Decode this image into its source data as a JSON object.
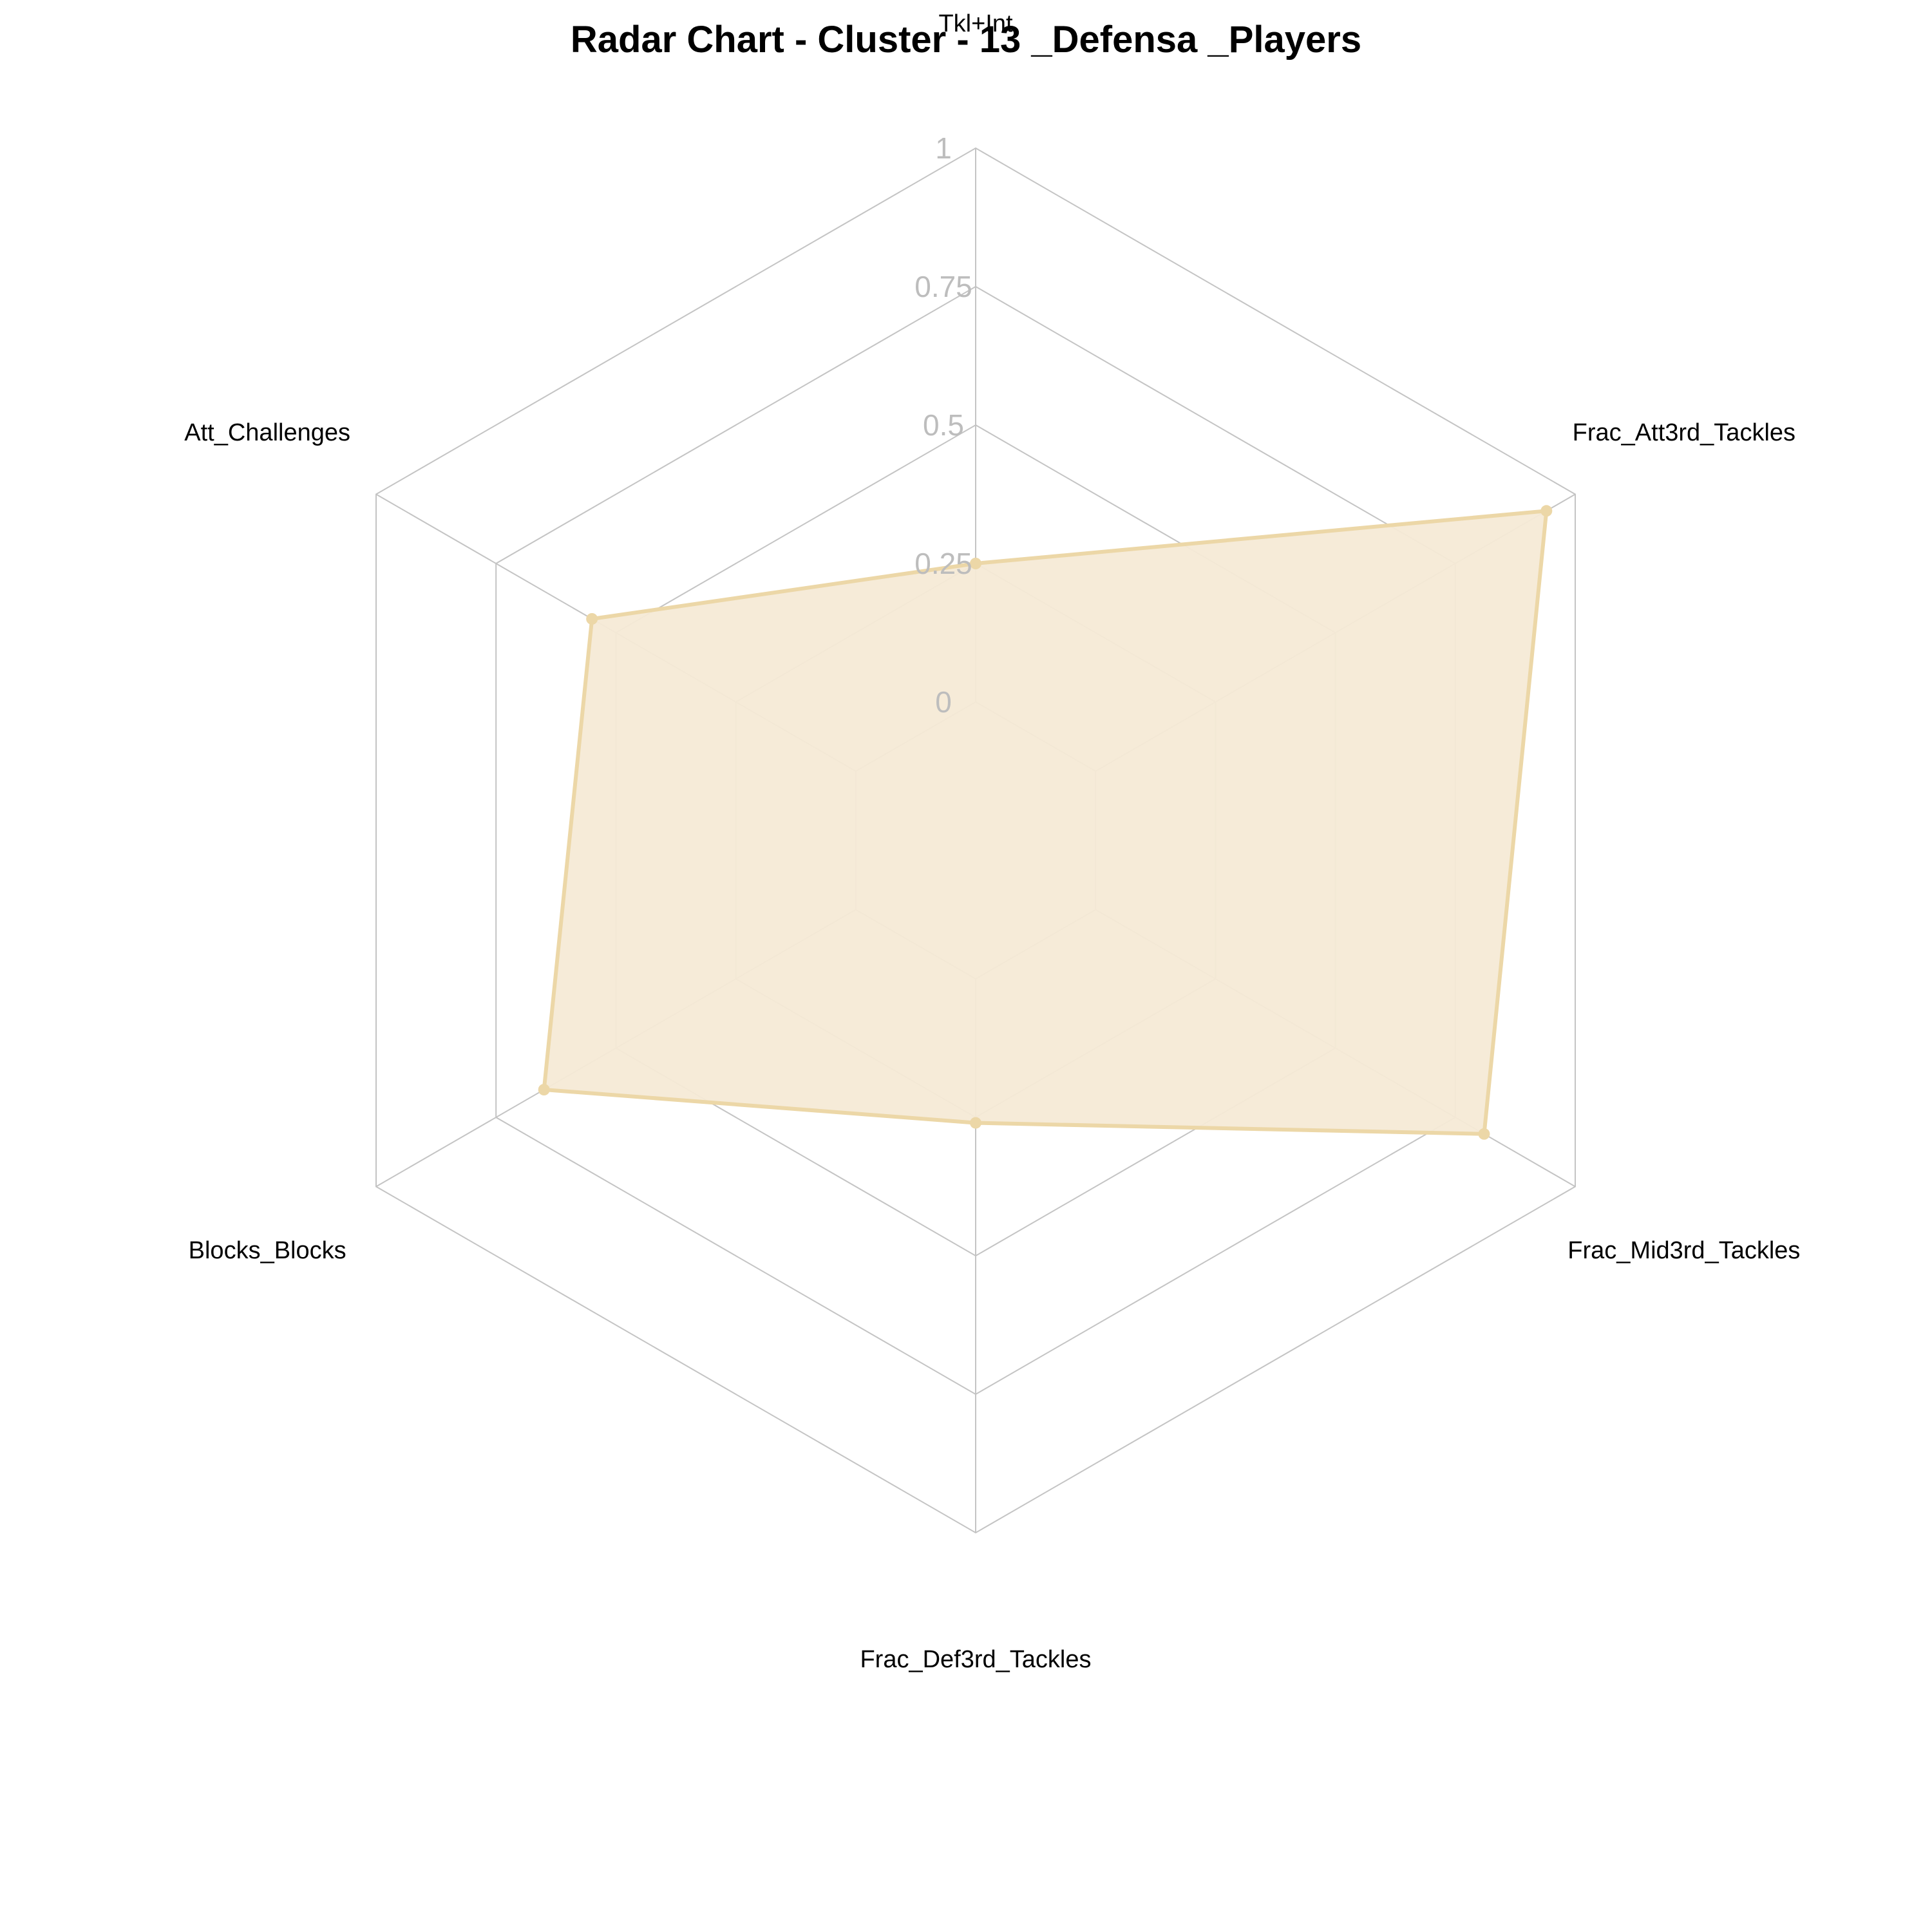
{
  "chart_data": {
    "type": "radar",
    "title": "Radar Chart - Cluster - 13 _Defensa _Players",
    "axes": [
      "Tkl+Int",
      "Frac_Att3rd_Tackles",
      "Frac_Mid3rd_Tackles",
      "Frac_Def3rd_Tackles",
      "Blocks_Blocks",
      "Att_Challenges"
    ],
    "ticks": [
      0,
      0.25,
      0.5,
      0.75,
      1
    ],
    "tick_labels": [
      "0",
      "0.25",
      "0.5",
      "0.75",
      "1"
    ],
    "range": [
      0,
      1
    ],
    "series": [
      {
        "values": [
          0.25,
          0.94,
          0.81,
          0.26,
          0.65,
          0.55
        ]
      }
    ],
    "colors": {
      "grid": "#c4c4c4",
      "fill": "#f5ead6",
      "stroke": "#ecd7a7",
      "point": "#ecd7a7",
      "tick_text": "#bdbdbd"
    }
  }
}
